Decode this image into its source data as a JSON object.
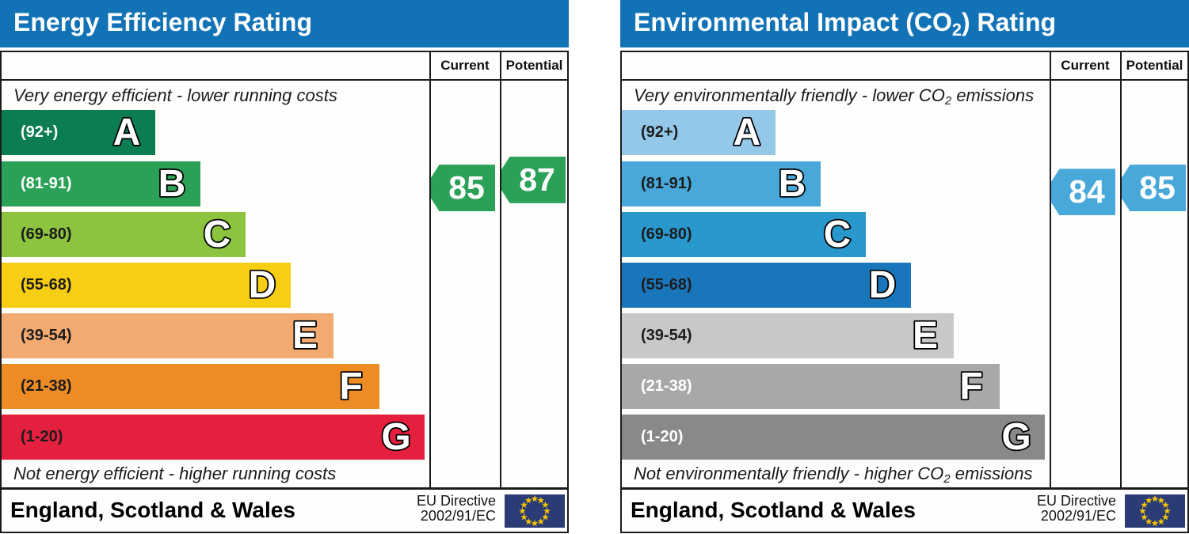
{
  "chart_data": [
    {
      "type": "bar",
      "title": "Energy Efficiency Rating",
      "categories": [
        "A",
        "B",
        "C",
        "D",
        "E",
        "F",
        "G"
      ],
      "band_ranges": [
        "(92+)",
        "(81-91)",
        "(69-80)",
        "(55-68)",
        "(39-54)",
        "(21-38)",
        "(1-20)"
      ],
      "band_score_limits": [
        [
          92,
          100
        ],
        [
          81,
          91
        ],
        [
          69,
          80
        ],
        [
          55,
          68
        ],
        [
          39,
          54
        ],
        [
          21,
          38
        ],
        [
          1,
          20
        ]
      ],
      "band_colors": [
        "#0c7d53",
        "#2ba157",
        "#8cc43f",
        "#f7ce13",
        "#f3aa70",
        "#ed8b25",
        "#e51f3e"
      ],
      "series": [
        {
          "name": "Current",
          "value": 85,
          "band": "B"
        },
        {
          "name": "Potential",
          "value": 87,
          "band": "B"
        }
      ],
      "top_annotation": "Very energy efficient - lower running costs",
      "bottom_annotation": "Not energy efficient - higher running costs",
      "footer": "England, Scotland & Wales",
      "directive": "EU Directive 2002/91/EC",
      "legend_position": "right-columns",
      "grid": false
    },
    {
      "type": "bar",
      "title": "Environmental Impact (CO2) Rating",
      "categories": [
        "A",
        "B",
        "C",
        "D",
        "E",
        "F",
        "G"
      ],
      "band_ranges": [
        "(92+)",
        "(81-91)",
        "(69-80)",
        "(55-68)",
        "(39-54)",
        "(21-38)",
        "(1-20)"
      ],
      "band_score_limits": [
        [
          92,
          100
        ],
        [
          81,
          91
        ],
        [
          69,
          80
        ],
        [
          55,
          68
        ],
        [
          39,
          54
        ],
        [
          21,
          38
        ],
        [
          1,
          20
        ]
      ],
      "band_colors": [
        "#94c8e8",
        "#48a8da",
        "#2998cd",
        "#1a76bb",
        "#cac8c6",
        "#a8a8a6",
        "#898987"
      ],
      "series": [
        {
          "name": "Current",
          "value": 84,
          "band": "B"
        },
        {
          "name": "Potential",
          "value": 85,
          "band": "B"
        }
      ],
      "top_annotation": "Very environmentally friendly - lower CO2 emissions",
      "bottom_annotation": "Not environmentally friendly - higher CO2 emissions",
      "footer": "England, Scotland & Wales",
      "directive": "EU Directive 2002/91/EC",
      "legend_position": "right-columns",
      "grid": false
    }
  ],
  "charts": [
    {
      "title_parts": [
        "Energy Efficiency Rating",
        "",
        ""
      ],
      "header_color": "#1272b6",
      "columns": {
        "current": "Current",
        "potential": "Potential"
      },
      "top_note_parts": [
        "Very energy efficient - lower running costs",
        "",
        ""
      ],
      "bottom_note_parts": [
        "Not energy efficient - higher running costs",
        "",
        ""
      ],
      "bands": [
        {
          "letter": "A",
          "range": "(92+)",
          "min": 92,
          "max": 100,
          "color": "#0c7d53",
          "label_color": "#ffffff"
        },
        {
          "letter": "B",
          "range": "(81-91)",
          "min": 81,
          "max": 91,
          "color": "#2ba157",
          "label_color": "#ffffff"
        },
        {
          "letter": "C",
          "range": "(69-80)",
          "min": 69,
          "max": 80,
          "color": "#8cc43f",
          "label_color": "#1c1c1c"
        },
        {
          "letter": "D",
          "range": "(55-68)",
          "min": 55,
          "max": 68,
          "color": "#f7ce13",
          "label_color": "#1c1c1c"
        },
        {
          "letter": "E",
          "range": "(39-54)",
          "min": 39,
          "max": 54,
          "color": "#f3aa70",
          "label_color": "#1c1c1c"
        },
        {
          "letter": "F",
          "range": "(21-38)",
          "min": 21,
          "max": 38,
          "color": "#ed8b25",
          "label_color": "#1c1c1c"
        },
        {
          "letter": "G",
          "range": "(1-20)",
          "min": 1,
          "max": 20,
          "color": "#e51f3e",
          "label_color": "#1c1c1c"
        }
      ],
      "scores": {
        "current": 85,
        "potential": 87
      },
      "arrow_color": "#2ba157",
      "footer": {
        "region": "England, Scotland & Wales",
        "directive_line1": "EU Directive",
        "directive_line2": "2002/91/EC",
        "flag_icon": "eu-flag",
        "flag_background": "#2b3b76",
        "flag_star_color": "#f2c500"
      }
    },
    {
      "title_parts": [
        "Environmental Impact (CO",
        "2",
        ") Rating"
      ],
      "header_color": "#1272b6",
      "columns": {
        "current": "Current",
        "potential": "Potential"
      },
      "top_note_parts": [
        "Very environmentally friendly - lower CO",
        "2",
        " emissions"
      ],
      "bottom_note_parts": [
        "Not environmentally friendly - higher CO",
        "2",
        " emissions"
      ],
      "bands": [
        {
          "letter": "A",
          "range": "(92+)",
          "min": 92,
          "max": 100,
          "color": "#94c8e8",
          "label_color": "#1c1c1c"
        },
        {
          "letter": "B",
          "range": "(81-91)",
          "min": 81,
          "max": 91,
          "color": "#48a8da",
          "label_color": "#1c1c1c"
        },
        {
          "letter": "C",
          "range": "(69-80)",
          "min": 69,
          "max": 80,
          "color": "#2998cd",
          "label_color": "#1c1c1c"
        },
        {
          "letter": "D",
          "range": "(55-68)",
          "min": 55,
          "max": 68,
          "color": "#1a76bb",
          "label_color": "#1c1c1c"
        },
        {
          "letter": "E",
          "range": "(39-54)",
          "min": 39,
          "max": 54,
          "color": "#cac8c6",
          "label_color": "#1c1c1c"
        },
        {
          "letter": "F",
          "range": "(21-38)",
          "min": 21,
          "max": 38,
          "color": "#a8a8a6",
          "label_color": "#ffffff"
        },
        {
          "letter": "G",
          "range": "(1-20)",
          "min": 1,
          "max": 20,
          "color": "#898987",
          "label_color": "#ffffff"
        }
      ],
      "scores": {
        "current": 84,
        "potential": 85
      },
      "arrow_color": "#48a8da",
      "footer": {
        "region": "England, Scotland & Wales",
        "directive_line1": "EU Directive",
        "directive_line2": "2002/91/EC",
        "flag_icon": "eu-flag",
        "flag_background": "#2b3b76",
        "flag_star_color": "#f2c500"
      }
    }
  ]
}
